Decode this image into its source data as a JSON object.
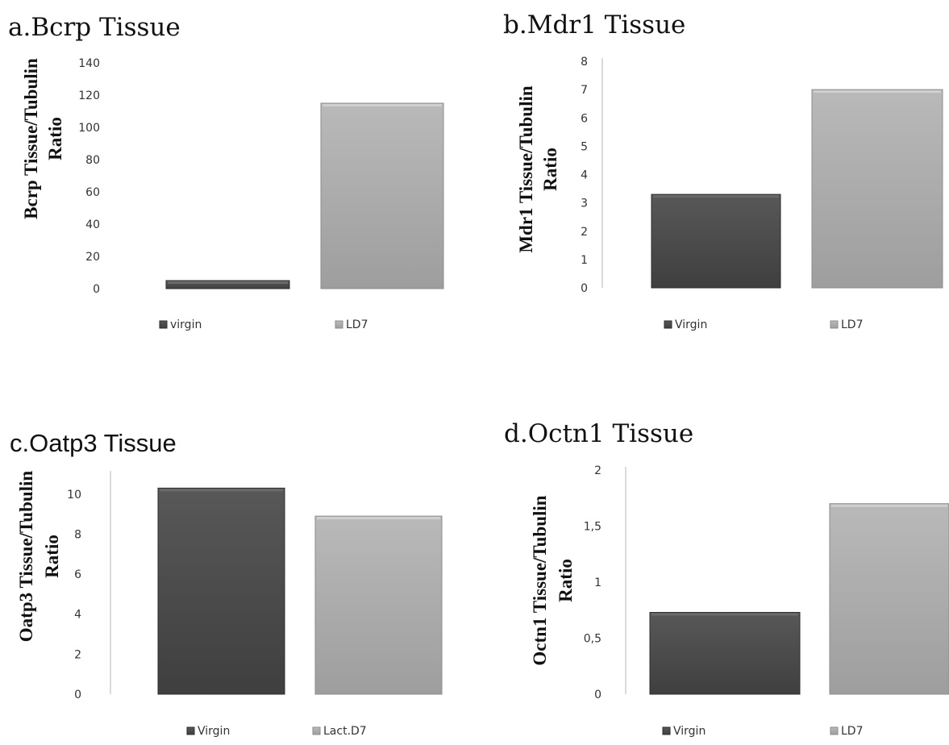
{
  "colors": {
    "dark_top": "#585858",
    "dark_bottom": "#3f3f3f",
    "light_top": "#b9b9b9",
    "light_bottom": "#9e9e9e",
    "axis": "#cfcfcf"
  },
  "chart_data": [
    {
      "type": "bar",
      "title": "a.Bcrp Tissue",
      "ylabel_lines": [
        "Bcrp Tissue/Tubulin",
        "Ratio"
      ],
      "yticks": [
        "0",
        "20",
        "40",
        "60",
        "80",
        "100",
        "120",
        "140"
      ],
      "ylim": [
        0,
        140
      ],
      "axis_line": false,
      "series": [
        {
          "name": "virgin",
          "values": [
            5
          ]
        },
        {
          "name": "LD7",
          "values": [
            115
          ]
        }
      ]
    },
    {
      "type": "bar",
      "title": "b.Mdr1 Tissue",
      "ylabel_lines": [
        "Mdr1 Tissue/Tubulin",
        "Ratio"
      ],
      "yticks": [
        "0",
        "1",
        "2",
        "3",
        "4",
        "5",
        "6",
        "7",
        "8"
      ],
      "ylim": [
        0,
        8
      ],
      "axis_line": true,
      "series": [
        {
          "name": "Virgin",
          "values": [
            3.3
          ]
        },
        {
          "name": "LD7",
          "values": [
            7.0
          ]
        }
      ]
    },
    {
      "type": "bar",
      "title": "c.Oatp3 Tissue",
      "ylabel_lines": [
        "Oatp3 Tissue/Tubulin",
        "Ratio"
      ],
      "yticks": [
        "0",
        "2",
        "4",
        "6",
        "8",
        "10"
      ],
      "ylim": [
        0,
        11
      ],
      "axis_line": true,
      "series": [
        {
          "name": "Virgin",
          "values": [
            10.3
          ]
        },
        {
          "name": "Lact.D7",
          "values": [
            8.9
          ]
        }
      ]
    },
    {
      "type": "bar",
      "title": "d.Octn1 Tissue",
      "ylabel_lines": [
        "Octn1 Tissue/Tubulin",
        "Ratio"
      ],
      "yticks": [
        "0",
        "0,5",
        "1",
        "1,5",
        "2"
      ],
      "ylim": [
        0,
        2
      ],
      "axis_line": true,
      "series": [
        {
          "name": "Virgin",
          "values": [
            0.73
          ]
        },
        {
          "name": "LD7",
          "values": [
            1.7
          ]
        }
      ]
    }
  ]
}
